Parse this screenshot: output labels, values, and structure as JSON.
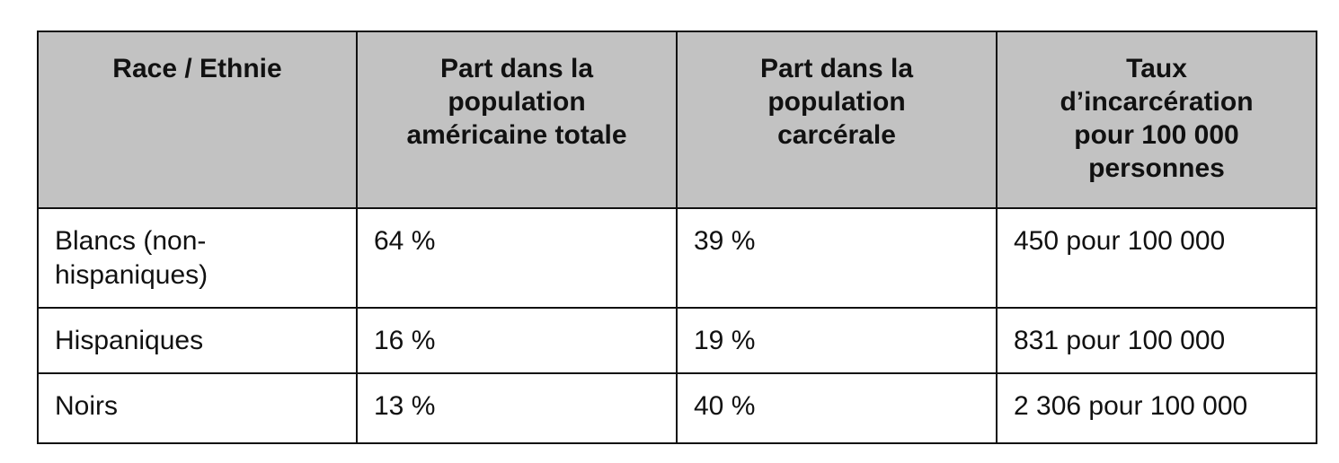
{
  "table": {
    "headers": [
      "Race / Ethnie",
      "Part dans la\npopulation\naméricaine totale",
      "Part dans la\npopulation\ncarcérale",
      "Taux\nd’incarcération\npour 100 000\npersonnes"
    ],
    "rows": [
      {
        "group": "Blancs (non-\nhispaniques)",
        "population_share": "64 %",
        "prison_share": "39 %",
        "incarceration_rate": "450 pour 100 000"
      },
      {
        "group": "Hispaniques",
        "population_share": "16 %",
        "prison_share": "19 %",
        "incarceration_rate": "831 pour 100 000"
      },
      {
        "group": "Noirs",
        "population_share": "13 %",
        "prison_share": "40 %",
        "incarceration_rate": "2 306 pour 100 000"
      }
    ]
  },
  "colors": {
    "header_background": "#c2c2c2",
    "border": "#111111",
    "cell_background": "#ffffff"
  }
}
